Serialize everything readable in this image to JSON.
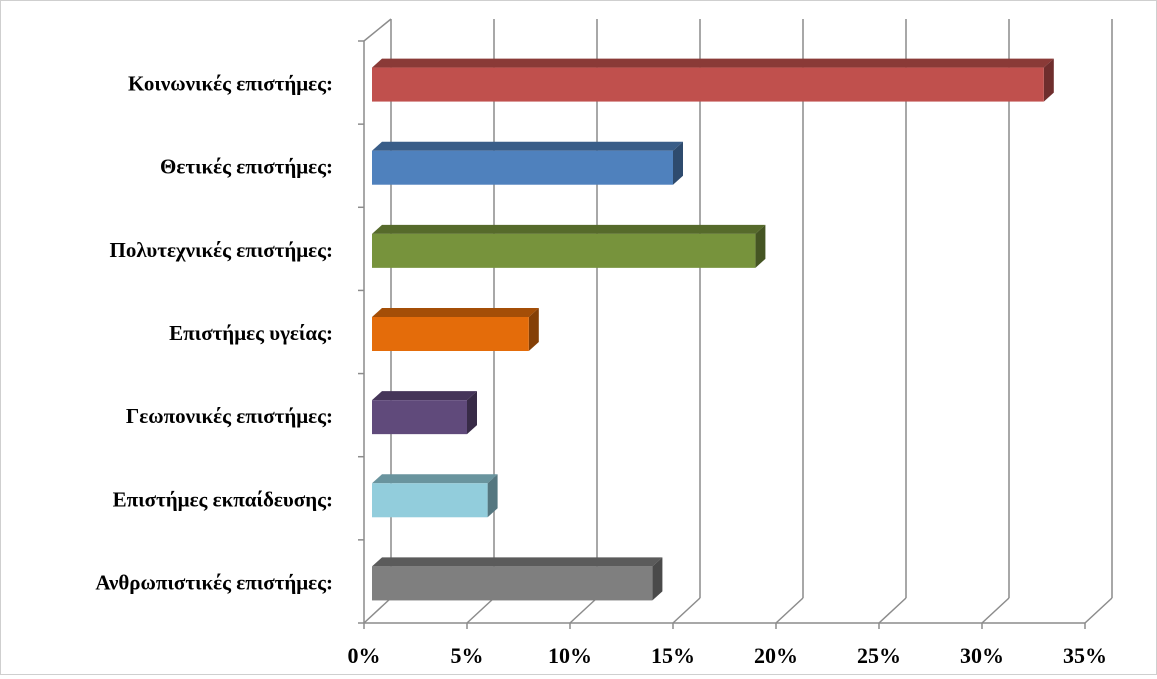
{
  "chart_data": {
    "type": "bar",
    "orientation": "horizontal",
    "style": "3d",
    "categories": [
      "Κοινωνικές επιστήμες:",
      "Θετικές επιστήμες:",
      "Πολυτεχνικές επιστήμες:",
      "Επιστήμες υγείας:",
      "Γεωπονικές επιστήμες:",
      "Επιστήμες εκπαίδευσης:",
      "Ανθρωπιστικές επιστήμες:"
    ],
    "values": [
      33,
      15,
      19,
      8,
      5,
      6,
      14
    ],
    "colors": [
      "#C0504D",
      "#4F81BD",
      "#77933C",
      "#E46C0A",
      "#604A7B",
      "#92CDDC",
      "#7F7F7F"
    ],
    "xlim": [
      0,
      35
    ],
    "xticks": [
      "0%",
      "5%",
      "10%",
      "15%",
      "20%",
      "25%",
      "30%",
      "35%"
    ],
    "grid": true,
    "legend": false,
    "title": "",
    "xlabel": "",
    "ylabel": ""
  }
}
